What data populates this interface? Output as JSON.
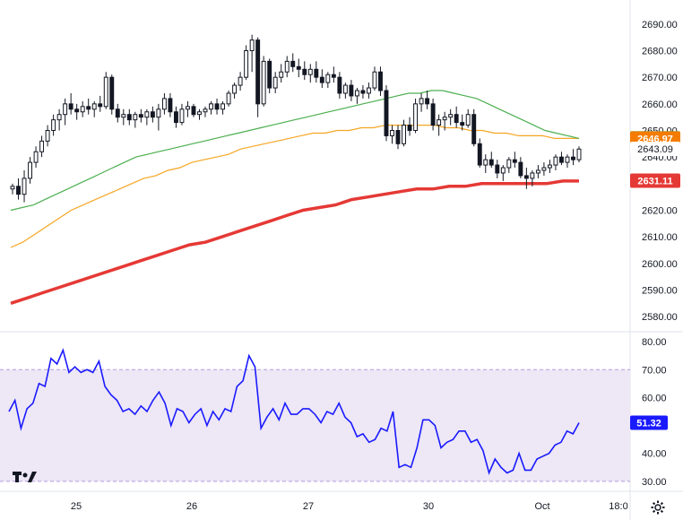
{
  "chart_data": [
    {
      "type": "line",
      "panel": "price",
      "x_labels": [
        "25",
        "26",
        "27",
        "30",
        "Oct",
        "18:0"
      ],
      "y_ticks": [
        2580,
        2590,
        2600,
        2610,
        2620,
        2630,
        2640,
        2650,
        2660,
        2670,
        2680,
        2690
      ],
      "y_tick_labels": [
        "2580.00",
        "2590.00",
        "2600.00",
        "2610.00",
        "2620.00",
        "2630.00",
        "2640.00",
        "2650.00",
        "2660.00",
        "2670.00",
        "2680.00",
        "2690.00"
      ],
      "ylim": [
        2576,
        2694
      ],
      "candles": [
        [
          2628,
          2630,
          2626,
          2629
        ],
        [
          2629,
          2632,
          2624,
          2626
        ],
        [
          2626,
          2635,
          2623,
          2632
        ],
        [
          2632,
          2640,
          2630,
          2638
        ],
        [
          2638,
          2644,
          2636,
          2642
        ],
        [
          2642,
          2648,
          2640,
          2646
        ],
        [
          2646,
          2652,
          2644,
          2650
        ],
        [
          2650,
          2656,
          2648,
          2654
        ],
        [
          2654,
          2658,
          2650,
          2656
        ],
        [
          2656,
          2662,
          2652,
          2660
        ],
        [
          2660,
          2664,
          2656,
          2658
        ],
        [
          2658,
          2660,
          2654,
          2657
        ],
        [
          2657,
          2661,
          2655,
          2659
        ],
        [
          2659,
          2662,
          2656,
          2658
        ],
        [
          2658,
          2661,
          2655,
          2660
        ],
        [
          2660,
          2663,
          2657,
          2659
        ],
        [
          2659,
          2672,
          2658,
          2670
        ],
        [
          2670,
          2671,
          2656,
          2658
        ],
        [
          2658,
          2660,
          2653,
          2655
        ],
        [
          2655,
          2658,
          2652,
          2656
        ],
        [
          2656,
          2658,
          2652,
          2654
        ],
        [
          2654,
          2657,
          2651,
          2656
        ],
        [
          2656,
          2658,
          2653,
          2655
        ],
        [
          2655,
          2658,
          2652,
          2657
        ],
        [
          2657,
          2659,
          2653,
          2655
        ],
        [
          2655,
          2660,
          2650,
          2658
        ],
        [
          2658,
          2664,
          2656,
          2662
        ],
        [
          2662,
          2664,
          2655,
          2657
        ],
        [
          2657,
          2659,
          2651,
          2653
        ],
        [
          2653,
          2660,
          2652,
          2658
        ],
        [
          2658,
          2661,
          2655,
          2659
        ],
        [
          2659,
          2660,
          2655,
          2656
        ],
        [
          2656,
          2658,
          2654,
          2657
        ],
        [
          2657,
          2659,
          2655,
          2658
        ],
        [
          2658,
          2661,
          2656,
          2660
        ],
        [
          2660,
          2662,
          2656,
          2658
        ],
        [
          2658,
          2661,
          2656,
          2660
        ],
        [
          2660,
          2665,
          2659,
          2664
        ],
        [
          2664,
          2668,
          2662,
          2667
        ],
        [
          2667,
          2672,
          2665,
          2670
        ],
        [
          2670,
          2682,
          2669,
          2680
        ],
        [
          2680,
          2686,
          2672,
          2684
        ],
        [
          2684,
          2685,
          2655,
          2660
        ],
        [
          2660,
          2678,
          2659,
          2676
        ],
        [
          2676,
          2677,
          2664,
          2666
        ],
        [
          2666,
          2672,
          2664,
          2670
        ],
        [
          2670,
          2675,
          2668,
          2672
        ],
        [
          2672,
          2678,
          2670,
          2676
        ],
        [
          2676,
          2679,
          2672,
          2674
        ],
        [
          2674,
          2677,
          2670,
          2673
        ],
        [
          2673,
          2676,
          2669,
          2671
        ],
        [
          2671,
          2675,
          2668,
          2673
        ],
        [
          2673,
          2676,
          2668,
          2670
        ],
        [
          2670,
          2673,
          2666,
          2668
        ],
        [
          2668,
          2672,
          2666,
          2671
        ],
        [
          2671,
          2674,
          2668,
          2670
        ],
        [
          2670,
          2672,
          2662,
          2664
        ],
        [
          2664,
          2668,
          2662,
          2667
        ],
        [
          2667,
          2669,
          2661,
          2663
        ],
        [
          2663,
          2666,
          2660,
          2665
        ],
        [
          2665,
          2667,
          2662,
          2664
        ],
        [
          2664,
          2668,
          2662,
          2666
        ],
        [
          2666,
          2674,
          2665,
          2672
        ],
        [
          2672,
          2674,
          2663,
          2665
        ],
        [
          2665,
          2667,
          2646,
          2648
        ],
        [
          2648,
          2652,
          2645,
          2650
        ],
        [
          2650,
          2652,
          2643,
          2645
        ],
        [
          2645,
          2654,
          2644,
          2652
        ],
        [
          2652,
          2655,
          2648,
          2650
        ],
        [
          2650,
          2662,
          2649,
          2660
        ],
        [
          2660,
          2664,
          2657,
          2662
        ],
        [
          2662,
          2665,
          2658,
          2660
        ],
        [
          2660,
          2662,
          2650,
          2652
        ],
        [
          2652,
          2656,
          2648,
          2654
        ],
        [
          2654,
          2657,
          2650,
          2655
        ],
        [
          2655,
          2658,
          2652,
          2656
        ],
        [
          2656,
          2659,
          2651,
          2653
        ],
        [
          2653,
          2656,
          2650,
          2652
        ],
        [
          2652,
          2658,
          2651,
          2656
        ],
        [
          2656,
          2658,
          2644,
          2645
        ],
        [
          2645,
          2647,
          2636,
          2637
        ],
        [
          2637,
          2641,
          2634,
          2639
        ],
        [
          2639,
          2642,
          2636,
          2637
        ],
        [
          2637,
          2639,
          2632,
          2634
        ],
        [
          2634,
          2637,
          2631,
          2636
        ],
        [
          2636,
          2640,
          2634,
          2639
        ],
        [
          2639,
          2642,
          2636,
          2638
        ],
        [
          2638,
          2640,
          2632,
          2633
        ],
        [
          2633,
          2636,
          2628,
          2632
        ],
        [
          2632,
          2635,
          2629,
          2634
        ],
        [
          2634,
          2637,
          2632,
          2635
        ],
        [
          2635,
          2638,
          2633,
          2636
        ],
        [
          2636,
          2639,
          2634,
          2637
        ],
        [
          2637,
          2641,
          2635,
          2640
        ],
        [
          2640,
          2642,
          2637,
          2638
        ],
        [
          2638,
          2641,
          2636,
          2640
        ],
        [
          2640,
          2643,
          2637,
          2639
        ],
        [
          2639,
          2644,
          2638,
          2643
        ]
      ],
      "sma50": [
        2620,
        2621,
        2622,
        2624,
        2626,
        2628,
        2630,
        2632,
        2634,
        2636,
        2638,
        2640,
        2641,
        2642,
        2643,
        2644,
        2645,
        2646,
        2647,
        2648,
        2649,
        2650,
        2651,
        2652,
        2653,
        2654,
        2655,
        2656,
        2657,
        2658,
        2659,
        2660,
        2661,
        2662,
        2663,
        2664,
        2664,
        2665,
        2665,
        2664,
        2663,
        2662,
        2660,
        2658,
        2656,
        2654,
        2652,
        2650,
        2649,
        2648,
        2647
      ],
      "sma100": [
        2606,
        2608,
        2611,
        2614,
        2617,
        2620,
        2622,
        2624,
        2626,
        2628,
        2630,
        2632,
        2633,
        2635,
        2636,
        2638,
        2639,
        2640,
        2641,
        2643,
        2644,
        2645,
        2646,
        2647,
        2648,
        2649,
        2649,
        2650,
        2650,
        2651,
        2651,
        2652,
        2652,
        2652,
        2652,
        2652,
        2651,
        2651,
        2650,
        2650,
        2649,
        2649,
        2648,
        2648,
        2648,
        2647,
        2647,
        2647
      ],
      "sma200": [
        2585,
        2587,
        2589,
        2591,
        2593,
        2595,
        2597,
        2599,
        2601,
        2603,
        2605,
        2607,
        2608,
        2610,
        2612,
        2614,
        2616,
        2618,
        2620,
        2621,
        2622,
        2624,
        2625,
        2626,
        2627,
        2628,
        2628,
        2629,
        2629,
        2630,
        2630,
        2630,
        2630,
        2630,
        2631,
        2631
      ],
      "badges": [
        {
          "label": "2647.04",
          "value": 2647.04,
          "color": "#4caf50"
        },
        {
          "label": "2646.97",
          "value": 2646.97,
          "color": "#f57c00"
        },
        {
          "label": "2643.09",
          "value": 2643.09,
          "color": "#ffffff"
        },
        {
          "label": "2631.11",
          "value": 2631.11,
          "color": "#e53935"
        }
      ],
      "colors": {
        "sma50": "#4caf50",
        "sma100": "#f5a623",
        "sma200": "#e53935",
        "candle": "#131722"
      }
    },
    {
      "type": "line",
      "panel": "rsi",
      "y_ticks": [
        30,
        40,
        50,
        60,
        70,
        80
      ],
      "y_tick_labels": [
        "30.00",
        "40.00",
        "50.00",
        "60.00",
        "70.00",
        "80.00"
      ],
      "ylim": [
        29,
        81
      ],
      "band": [
        30,
        70
      ],
      "values": [
        55,
        59,
        49,
        56,
        58,
        65,
        64,
        74,
        72,
        77,
        69,
        71,
        69,
        70,
        69,
        73,
        64,
        61,
        59,
        55,
        56,
        54,
        57,
        55,
        59,
        62,
        58,
        50,
        56,
        55,
        51,
        54,
        56,
        50,
        55,
        52,
        56,
        55,
        64,
        66,
        75,
        71,
        49,
        53,
        56,
        52,
        58,
        54,
        54,
        56,
        56,
        54,
        51,
        55,
        54,
        58,
        53,
        51,
        46,
        47,
        44,
        45,
        49,
        48,
        55,
        35,
        36,
        35,
        42,
        52,
        52,
        50,
        42,
        44,
        45,
        48,
        48,
        44,
        45,
        41,
        33,
        38,
        35,
        33,
        34,
        40,
        34,
        34,
        38,
        39,
        40,
        43,
        44,
        48,
        47,
        51
      ],
      "current_label": "51.32",
      "colors": {
        "line": "#1a1aff",
        "band_fill": "#ede7f6",
        "band_line": "#b39ddb"
      }
    }
  ]
}
